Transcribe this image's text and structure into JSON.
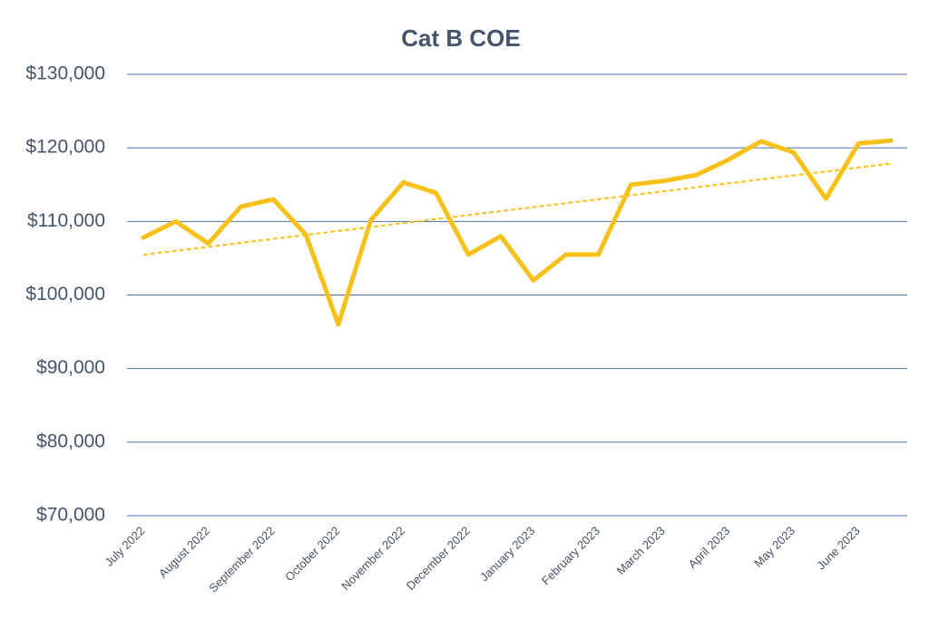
{
  "chart_data": {
    "type": "line",
    "title": "Cat B COE",
    "categories": [
      "July 2022",
      null,
      "August 2022",
      null,
      "September 2022",
      null,
      "October 2022",
      null,
      "November 2022",
      null,
      "December 2022",
      null,
      "January 2023",
      null,
      "February 2023",
      null,
      "March 2023",
      null,
      "April 2023",
      null,
      "May 2023",
      null,
      "June 2023",
      null
    ],
    "series": [
      {
        "name": "Cat B COE",
        "color": "#f7c11a",
        "values": [
          107800,
          110000,
          107000,
          112000,
          113000,
          108200,
          96000,
          110200,
          115300,
          113900,
          105500,
          108000,
          102000,
          105500,
          105500,
          115000,
          115500,
          116300,
          118400,
          120900,
          119400,
          113100,
          120600,
          121000
        ]
      }
    ],
    "trendline": "linear",
    "ylim": [
      70000,
      130000
    ],
    "yticks": [
      {
        "value": 70000,
        "label": "$70,000"
      },
      {
        "value": 80000,
        "label": "$80,000"
      },
      {
        "value": 90000,
        "label": "$90,000"
      },
      {
        "value": 100000,
        "label": "$100,000"
      },
      {
        "value": 110000,
        "label": "$110,000"
      },
      {
        "value": 120000,
        "label": "$120,000"
      },
      {
        "value": 130000,
        "label": "$130,000"
      }
    ],
    "grid": true
  }
}
